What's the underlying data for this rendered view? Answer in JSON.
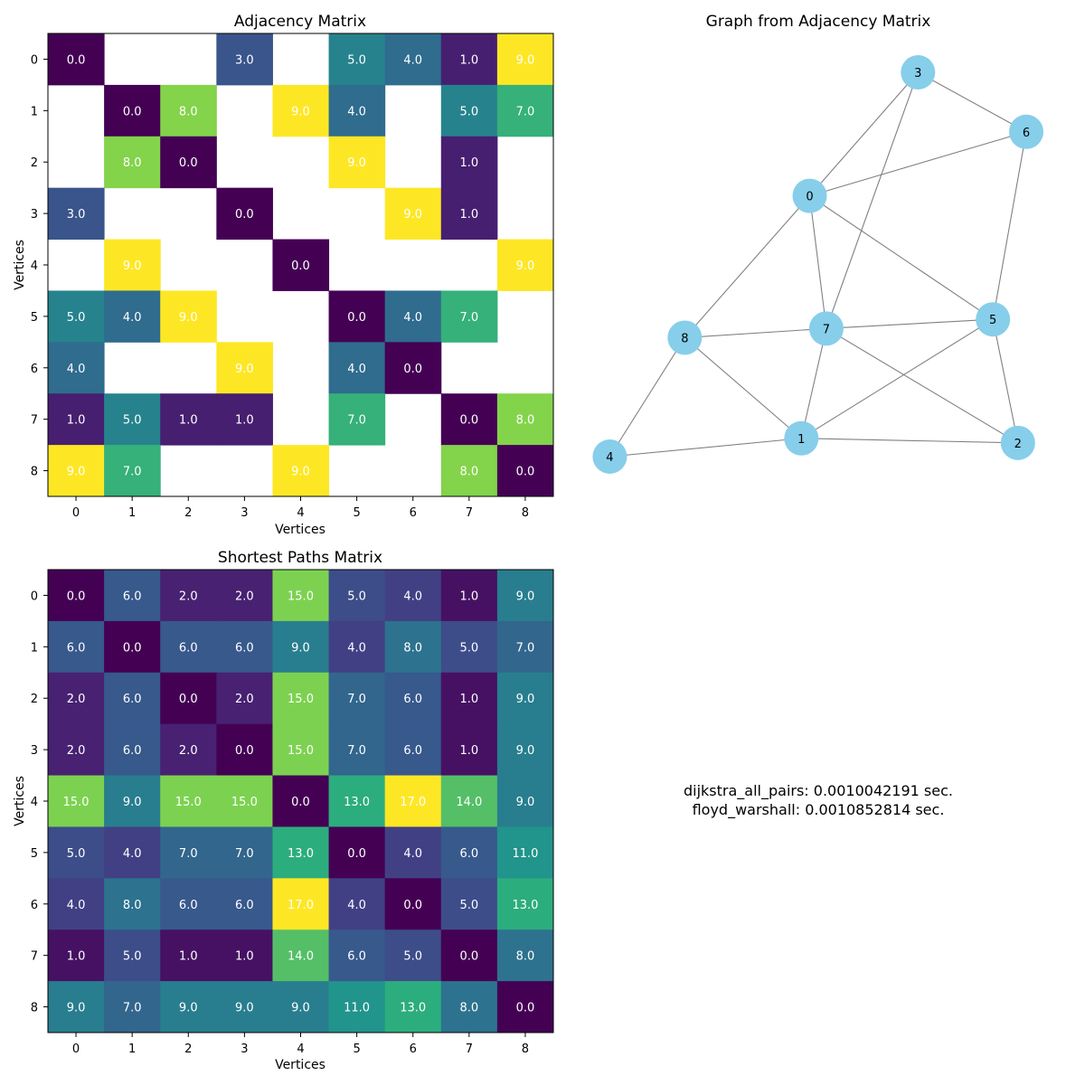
{
  "colors": {
    "node_fill": "#87ceeb",
    "edge": "#808080",
    "axis": "#000000",
    "cell_text": "#ffffff",
    "colormap": "viridis"
  },
  "chart_data": [
    {
      "type": "heatmap",
      "title": "Adjacency Matrix",
      "xlabel": "Vertices",
      "ylabel": "Vertices",
      "x_ticks": [
        "0",
        "1",
        "2",
        "3",
        "4",
        "5",
        "6",
        "7",
        "8"
      ],
      "y_ticks": [
        "0",
        "1",
        "2",
        "3",
        "4",
        "5",
        "6",
        "7",
        "8"
      ],
      "color_range": [
        0,
        9
      ],
      "empty_cells": "blank",
      "values": [
        [
          0,
          null,
          null,
          3,
          null,
          5,
          4,
          1,
          9
        ],
        [
          null,
          0,
          8,
          null,
          9,
          4,
          null,
          5,
          7
        ],
        [
          null,
          8,
          0,
          null,
          null,
          9,
          null,
          1,
          null
        ],
        [
          3,
          null,
          null,
          0,
          null,
          null,
          9,
          1,
          null
        ],
        [
          null,
          9,
          null,
          null,
          0,
          null,
          null,
          null,
          9
        ],
        [
          5,
          4,
          9,
          null,
          null,
          0,
          4,
          7,
          null
        ],
        [
          4,
          null,
          null,
          9,
          null,
          4,
          0,
          null,
          null
        ],
        [
          1,
          5,
          1,
          1,
          null,
          7,
          null,
          0,
          8
        ],
        [
          9,
          7,
          null,
          null,
          9,
          null,
          null,
          8,
          0
        ]
      ]
    },
    {
      "type": "network",
      "title": "Graph from Adjacency Matrix",
      "nodes": [
        {
          "id": "0",
          "x": 0.26,
          "y": 0.62
        },
        {
          "id": "1",
          "x": 0.25,
          "y": 0.09
        },
        {
          "id": "2",
          "x": 0.51,
          "y": 0.08
        },
        {
          "id": "3",
          "x": 0.39,
          "y": 0.89
        },
        {
          "id": "4",
          "x": 0.02,
          "y": 0.05
        },
        {
          "id": "5",
          "x": 0.48,
          "y": 0.35
        },
        {
          "id": "6",
          "x": 0.52,
          "y": 0.76
        },
        {
          "id": "7",
          "x": 0.28,
          "y": 0.33
        },
        {
          "id": "8",
          "x": 0.11,
          "y": 0.31
        }
      ],
      "edges": [
        [
          "0",
          "3"
        ],
        [
          "0",
          "5"
        ],
        [
          "0",
          "6"
        ],
        [
          "0",
          "7"
        ],
        [
          "0",
          "8"
        ],
        [
          "1",
          "4"
        ],
        [
          "1",
          "5"
        ],
        [
          "1",
          "7"
        ],
        [
          "1",
          "8"
        ],
        [
          "1",
          "2"
        ],
        [
          "2",
          "5"
        ],
        [
          "2",
          "7"
        ],
        [
          "3",
          "6"
        ],
        [
          "3",
          "7"
        ],
        [
          "4",
          "8"
        ],
        [
          "5",
          "6"
        ],
        [
          "5",
          "7"
        ],
        [
          "7",
          "8"
        ]
      ]
    },
    {
      "type": "heatmap",
      "title": "Shortest Paths Matrix",
      "xlabel": "Vertices",
      "ylabel": "Vertices",
      "x_ticks": [
        "0",
        "1",
        "2",
        "3",
        "4",
        "5",
        "6",
        "7",
        "8"
      ],
      "y_ticks": [
        "0",
        "1",
        "2",
        "3",
        "4",
        "5",
        "6",
        "7",
        "8"
      ],
      "color_range": [
        0,
        17
      ],
      "values": [
        [
          0,
          6,
          2,
          2,
          15,
          5,
          4,
          1,
          9
        ],
        [
          6,
          0,
          6,
          6,
          9,
          4,
          8,
          5,
          7
        ],
        [
          2,
          6,
          0,
          2,
          15,
          7,
          6,
          1,
          9
        ],
        [
          2,
          6,
          2,
          0,
          15,
          7,
          6,
          1,
          9
        ],
        [
          15,
          9,
          15,
          15,
          0,
          13,
          17,
          14,
          9
        ],
        [
          5,
          4,
          7,
          7,
          13,
          0,
          4,
          6,
          11
        ],
        [
          4,
          8,
          6,
          6,
          17,
          4,
          0,
          5,
          13
        ],
        [
          1,
          5,
          1,
          1,
          14,
          6,
          5,
          0,
          8
        ],
        [
          9,
          7,
          9,
          9,
          9,
          11,
          13,
          8,
          0
        ]
      ]
    }
  ],
  "timings": {
    "line1": "dijkstra_all_pairs: 0.0010042191 sec.",
    "line2": "floyd_warshall: 0.0010852814 sec."
  }
}
